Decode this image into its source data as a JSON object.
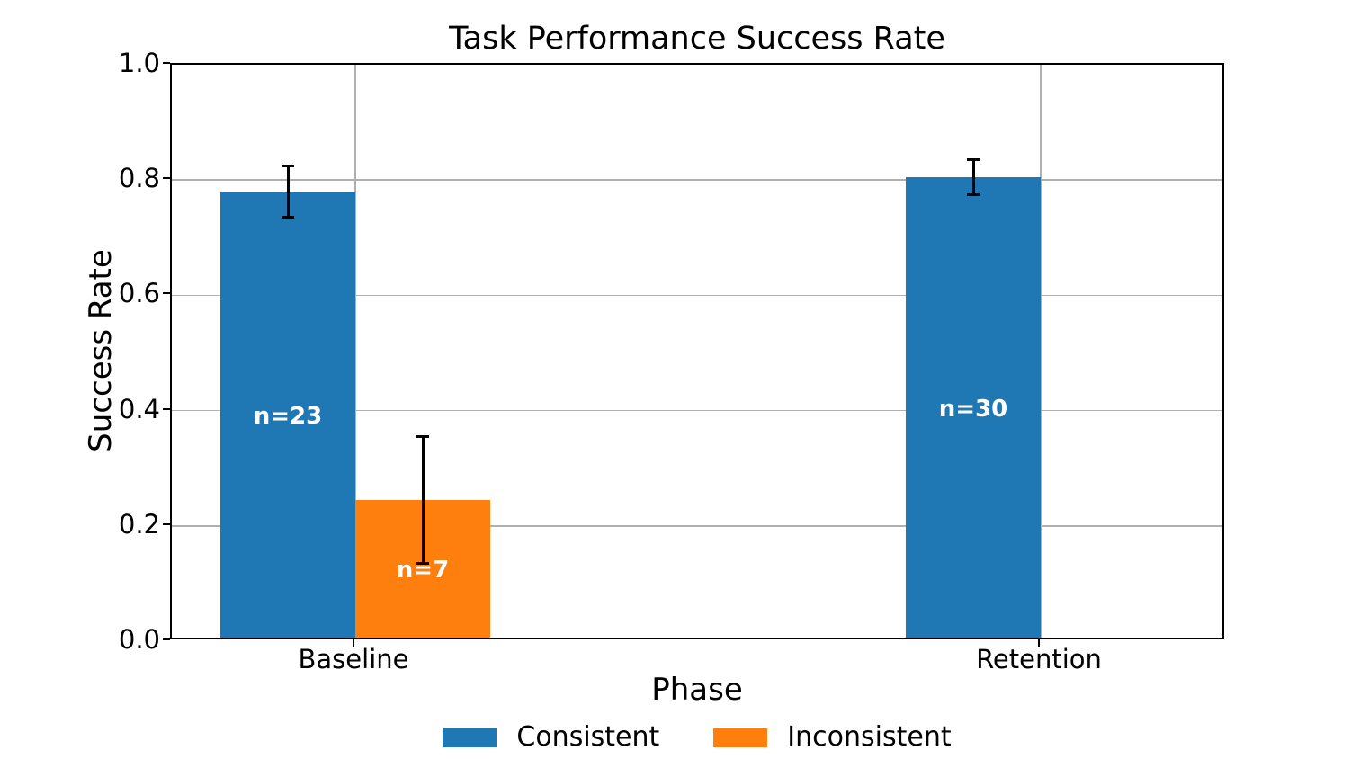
{
  "chart_data": {
    "type": "bar",
    "title": "Task Performance Success Rate",
    "xlabel": "Phase",
    "ylabel": "Success Rate",
    "categories": [
      "Baseline",
      "Retention"
    ],
    "series": [
      {
        "name": "Consistent",
        "color": "#1f77b4",
        "values": [
          0.78,
          0.805
        ],
        "errors": [
          0.045,
          0.03
        ],
        "bar_labels": [
          "n=23",
          "n=30"
        ]
      },
      {
        "name": "Inconsistent",
        "color": "#ff7f0e",
        "values": [
          0.245,
          0.0
        ],
        "errors": [
          0.11,
          0.003
        ],
        "bar_labels": [
          "n=7",
          ""
        ]
      }
    ],
    "ylim": [
      0.0,
      1.0
    ],
    "yticks": [
      "0.0",
      "0.2",
      "0.4",
      "0.6",
      "0.8",
      "1.0"
    ],
    "grid": true,
    "grid_color": "#b0b0b0",
    "background": "#ffffff",
    "bar_label_color": "#ffffff",
    "error_bar_color": "#000000",
    "legend_position": "bottom center"
  }
}
